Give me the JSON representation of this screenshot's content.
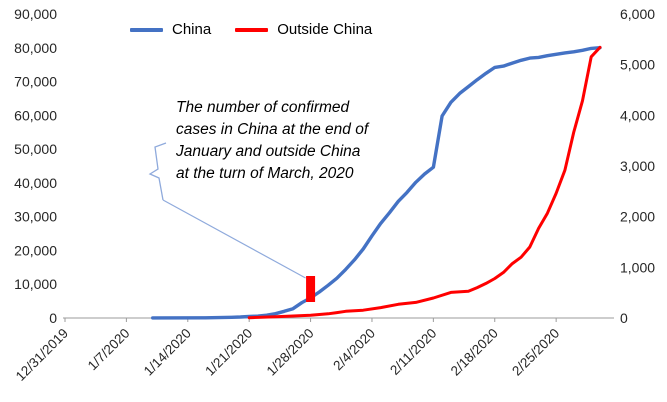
{
  "chart_data": {
    "type": "line",
    "title": "",
    "x_axis": {
      "tick_labels": [
        "12/31/2019",
        "1/7/2020",
        "1/14/2020",
        "1/21/2020",
        "1/28/2020",
        "2/4/2020",
        "2/11/2020",
        "2/18/2020",
        "2/25/2020"
      ],
      "end_date": "3/1/2020"
    },
    "left_axis": {
      "min": 0,
      "max": 90000,
      "step": 10000
    },
    "right_axis": {
      "min": 0,
      "max": 6000,
      "step": 1000
    },
    "annotation": {
      "lines": [
        "The number of confirmed",
        "cases in China at the end of",
        "January and outside China",
        "at the turn of March, 2020"
      ],
      "marker_date": "1/28/2020",
      "marker_color": "#FF0000",
      "leader_color": "#8FAADC"
    },
    "series": [
      {
        "name": "China",
        "axis": "left",
        "color": "#4472C4",
        "width": 3.4,
        "points": [
          [
            "1/10/2020",
            41
          ],
          [
            "1/16/2020",
            45
          ],
          [
            "1/19/2020",
            198
          ],
          [
            "1/20/2020",
            291
          ],
          [
            "1/21/2020",
            440
          ],
          [
            "1/22/2020",
            571
          ],
          [
            "1/23/2020",
            830
          ],
          [
            "1/24/2020",
            1287
          ],
          [
            "1/25/2020",
            1975
          ],
          [
            "1/26/2020",
            2744
          ],
          [
            "1/27/2020",
            4515
          ],
          [
            "1/28/2020",
            5974
          ],
          [
            "1/29/2020",
            7711
          ],
          [
            "1/30/2020",
            9692
          ],
          [
            "1/31/2020",
            11791
          ],
          [
            "2/1/2020",
            14380
          ],
          [
            "2/2/2020",
            17205
          ],
          [
            "2/3/2020",
            20438
          ],
          [
            "2/4/2020",
            24324
          ],
          [
            "2/5/2020",
            28018
          ],
          [
            "2/6/2020",
            31161
          ],
          [
            "2/7/2020",
            34546
          ],
          [
            "2/8/2020",
            37198
          ],
          [
            "2/9/2020",
            40171
          ],
          [
            "2/10/2020",
            42638
          ],
          [
            "2/11/2020",
            44653
          ],
          [
            "2/12/2020",
            59804
          ],
          [
            "2/13/2020",
            63851
          ],
          [
            "2/14/2020",
            66492
          ],
          [
            "2/15/2020",
            68500
          ],
          [
            "2/16/2020",
            70548
          ],
          [
            "2/17/2020",
            72436
          ],
          [
            "2/18/2020",
            74185
          ],
          [
            "2/19/2020",
            74576
          ],
          [
            "2/20/2020",
            75465
          ],
          [
            "2/21/2020",
            76288
          ],
          [
            "2/22/2020",
            76936
          ],
          [
            "2/23/2020",
            77150
          ],
          [
            "2/24/2020",
            77658
          ],
          [
            "2/25/2020",
            78064
          ],
          [
            "2/26/2020",
            78497
          ],
          [
            "2/27/2020",
            78824
          ],
          [
            "2/28/2020",
            79251
          ],
          [
            "2/29/2020",
            79824
          ],
          [
            "3/1/2020",
            80026
          ]
        ]
      },
      {
        "name": "Outside China",
        "axis": "right",
        "color": "#FF0000",
        "width": 3.0,
        "points": [
          [
            "1/21/2020",
            6
          ],
          [
            "1/24/2020",
            23
          ],
          [
            "1/26/2020",
            39
          ],
          [
            "1/28/2020",
            56
          ],
          [
            "1/30/2020",
            82
          ],
          [
            "1/31/2020",
            106
          ],
          [
            "2/1/2020",
            132
          ],
          [
            "2/3/2020",
            153
          ],
          [
            "2/5/2020",
            206
          ],
          [
            "2/7/2020",
            270
          ],
          [
            "2/9/2020",
            307
          ],
          [
            "2/11/2020",
            395
          ],
          [
            "2/13/2020",
            505
          ],
          [
            "2/15/2020",
            526
          ],
          [
            "2/16/2020",
            600
          ],
          [
            "2/17/2020",
            683
          ],
          [
            "2/18/2020",
            780
          ],
          [
            "2/19/2020",
            900
          ],
          [
            "2/20/2020",
            1073
          ],
          [
            "2/21/2020",
            1200
          ],
          [
            "2/22/2020",
            1402
          ],
          [
            "2/23/2020",
            1769
          ],
          [
            "2/24/2020",
            2069
          ],
          [
            "2/25/2020",
            2459
          ],
          [
            "2/26/2020",
            2918
          ],
          [
            "2/27/2020",
            3664
          ],
          [
            "2/28/2020",
            4288
          ],
          [
            "2/29/2020",
            5155
          ],
          [
            "3/1/2020",
            5340
          ]
        ]
      }
    ]
  }
}
